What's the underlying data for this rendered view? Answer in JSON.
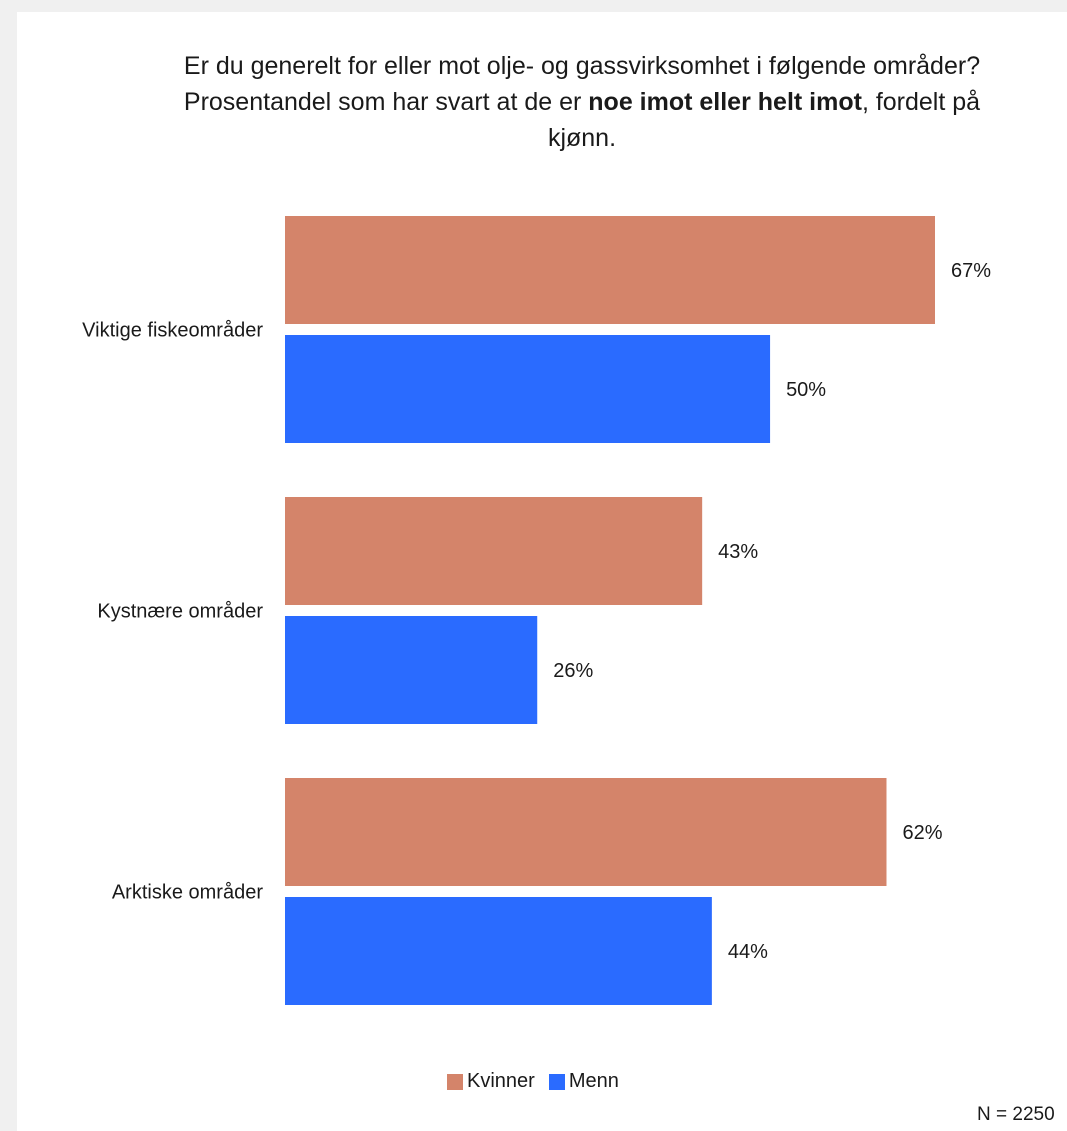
{
  "title": {
    "part1": "Er du generelt for eller mot olje- og gassvirksomhet i følgende områder? Prosentandel som har svart at de er ",
    "bold": "noe imot eller helt imot",
    "part2": ", fordelt på kjønn."
  },
  "note": "N = 2250",
  "colors": {
    "kvinner": "#d4846a",
    "menn": "#2a6bff"
  },
  "chart_data": {
    "type": "bar",
    "orientation": "horizontal",
    "categories": [
      "Viktige fiskeområder",
      "Kystnære områder",
      "Arktiske områder"
    ],
    "series": [
      {
        "name": "Kvinner",
        "values": [
          67,
          43,
          62
        ],
        "labels": [
          "67%",
          "43%",
          "62%"
        ]
      },
      {
        "name": "Menn",
        "values": [
          50,
          26,
          44
        ],
        "labels": [
          "50%",
          "26%",
          "44%"
        ]
      }
    ],
    "xlim": [
      0,
      67
    ],
    "unit": "%",
    "legend": "bottom-center",
    "grid": false
  }
}
